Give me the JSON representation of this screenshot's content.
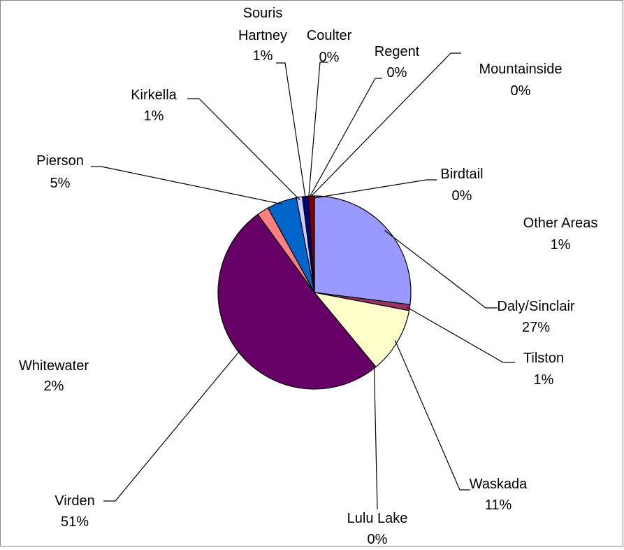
{
  "chart_data": {
    "type": "pie",
    "categories": [
      "Daly/Sinclair",
      "Tilston",
      "Waskada",
      "Lulu Lake",
      "Virden",
      "Whitewater",
      "Pierson",
      "Kirkella",
      "Souris Hartney",
      "Coulter",
      "Regent",
      "Mountainside",
      "Birdtail",
      "Other Areas"
    ],
    "values": [
      27,
      1,
      11,
      0,
      51,
      2,
      5,
      1,
      1,
      0,
      0,
      0,
      0,
      1
    ],
    "value_labels": [
      "27%",
      "1%",
      "11%",
      "0%",
      "51%",
      "2%",
      "5%",
      "1%",
      "1%",
      "0%",
      "0%",
      "0%",
      "0%",
      "1%"
    ],
    "colors": [
      "#9999ff",
      "#993366",
      "#ffffcc",
      "#ccffff",
      "#660066",
      "#ff8080",
      "#0066cc",
      "#ccccff",
      "#000080",
      "#ff00ff",
      "#ffff00",
      "#00ffff",
      "#800080",
      "#800000"
    ]
  }
}
